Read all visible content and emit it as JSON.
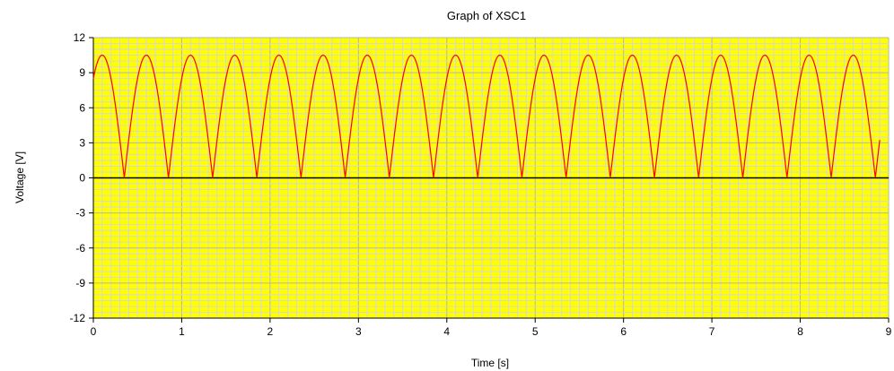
{
  "chart_data": {
    "type": "line",
    "title": "Graph of XSC1",
    "xlabel": "Time [s]",
    "ylabel": "Voltage [V]",
    "xlim": [
      0,
      9
    ],
    "ylim": [
      -12,
      12
    ],
    "x_ticks": [
      "0",
      "1",
      "2",
      "3",
      "4",
      "5",
      "6",
      "7",
      "8",
      "9"
    ],
    "y_ticks": [
      "12",
      "9",
      "6",
      "3",
      "0",
      "-3",
      "-6",
      "-9",
      "-12"
    ],
    "grid": true,
    "legend": "none",
    "background_color": "#ffff00",
    "series": [
      {
        "color": "#ff0000",
        "waveform": "full-wave rectified sine",
        "peak": 10.5,
        "period": 0.5,
        "first_peak_x": 0.1,
        "x_start": 0,
        "x_end": 8.9,
        "min": 0
      }
    ]
  }
}
